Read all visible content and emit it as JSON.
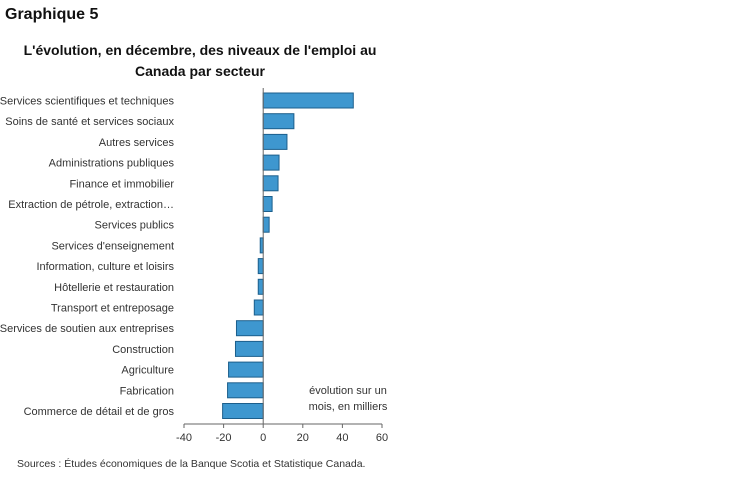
{
  "heading": "Graphique 5",
  "source": "Sources : Études économiques de la Banque Scotia et Statistique Canada.",
  "chart_data": {
    "type": "bar",
    "orientation": "horizontal",
    "title": "L'évolution, en décembre, des niveaux de l'emploi au Canada par secteur",
    "annotation": [
      "évolution sur un",
      "mois, en milliers"
    ],
    "categories": [
      "Services scientifiques et techniques",
      "Soins de santé et services sociaux",
      "Autres services",
      "Administrations publiques",
      "Finance et immobilier",
      "Extraction de pétrole, extraction…",
      "Services publics",
      "Services d'enseignement",
      "Information, culture et loisirs",
      "Hôtellerie et restauration",
      "Transport et entreposage",
      "Services de soutien aux entreprises",
      "Construction",
      "Agriculture",
      "Fabrication",
      "Commerce de détail et de gros"
    ],
    "values": [
      45.5,
      15.5,
      12,
      8,
      7.5,
      4.5,
      3,
      -1.5,
      -2.5,
      -2.5,
      -4.5,
      -13.5,
      -14,
      -17.5,
      -18,
      -20.5
    ],
    "xlim": [
      -40,
      60
    ],
    "xticks": [
      -40,
      -20,
      0,
      20,
      40,
      60
    ],
    "bar_color": "#3e97cf",
    "bar_edge_color": "#1c5f8c",
    "grid": false
  }
}
